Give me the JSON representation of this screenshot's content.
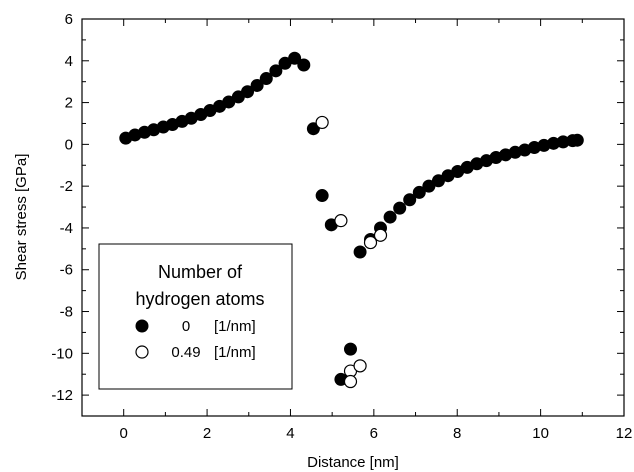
{
  "chart_data": {
    "type": "scatter",
    "xlabel": "Distance [nm]",
    "ylabel": "Shear stress [GPa]",
    "xlim": [
      -1,
      12
    ],
    "ylim": [
      -13,
      6
    ],
    "x_ticks": [
      0,
      2,
      4,
      6,
      8,
      10,
      12
    ],
    "y_ticks": [
      -12,
      -10,
      -8,
      -6,
      -4,
      -2,
      0,
      2,
      4,
      6
    ],
    "legend": {
      "title_line1": "Number of",
      "title_line2": "hydrogen atoms",
      "placement": "lower-left"
    },
    "series": [
      {
        "name": "0",
        "unit": "[1/nm]",
        "marker": "filled-circle",
        "color": "#000000",
        "x": [
          0.05,
          0.27,
          0.5,
          0.72,
          0.95,
          1.17,
          1.4,
          1.62,
          1.85,
          2.07,
          2.3,
          2.52,
          2.75,
          2.97,
          3.2,
          3.42,
          3.65,
          3.87,
          4.1,
          4.32,
          4.55,
          4.76,
          4.98,
          5.21,
          5.44,
          5.67,
          5.92,
          6.16,
          6.39,
          6.62,
          6.86,
          7.09,
          7.32,
          7.55,
          7.78,
          8.01,
          8.24,
          8.47,
          8.7,
          8.93,
          9.16,
          9.39,
          9.62,
          9.85,
          10.08,
          10.31,
          10.54,
          10.77,
          10.88
        ],
        "y": [
          0.3,
          0.45,
          0.58,
          0.7,
          0.83,
          0.95,
          1.1,
          1.25,
          1.43,
          1.62,
          1.82,
          2.03,
          2.27,
          2.52,
          2.82,
          3.15,
          3.52,
          3.88,
          4.12,
          3.8,
          0.75,
          -2.45,
          -3.85,
          -11.25,
          -9.8,
          -5.15,
          -4.55,
          -4.0,
          -3.48,
          -3.05,
          -2.65,
          -2.3,
          -2.0,
          -1.74,
          -1.5,
          -1.3,
          -1.1,
          -0.93,
          -0.78,
          -0.63,
          -0.5,
          -0.38,
          -0.27,
          -0.15,
          -0.05,
          0.05,
          0.12,
          0.18,
          0.2
        ]
      },
      {
        "name": "0.49",
        "unit": "[1/nm]",
        "marker": "open-circle",
        "color": "#000000",
        "x": [
          4.76,
          5.21,
          5.44,
          5.44,
          5.67,
          5.92,
          6.16
        ],
        "y": [
          1.05,
          -3.65,
          -10.85,
          -11.35,
          -10.6,
          -4.7,
          -4.35
        ]
      }
    ]
  }
}
